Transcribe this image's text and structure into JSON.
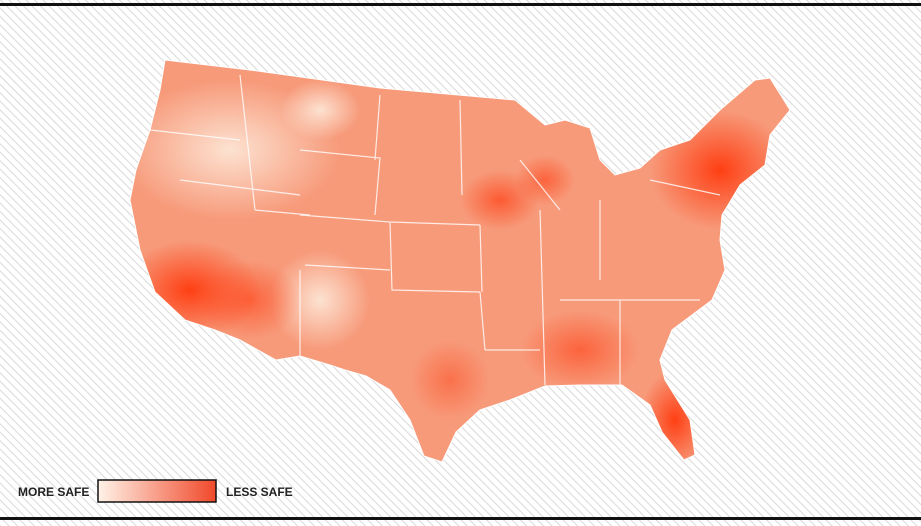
{
  "legend": {
    "low_label": "MORE SAFE",
    "high_label": "LESS SAFE"
  }
}
